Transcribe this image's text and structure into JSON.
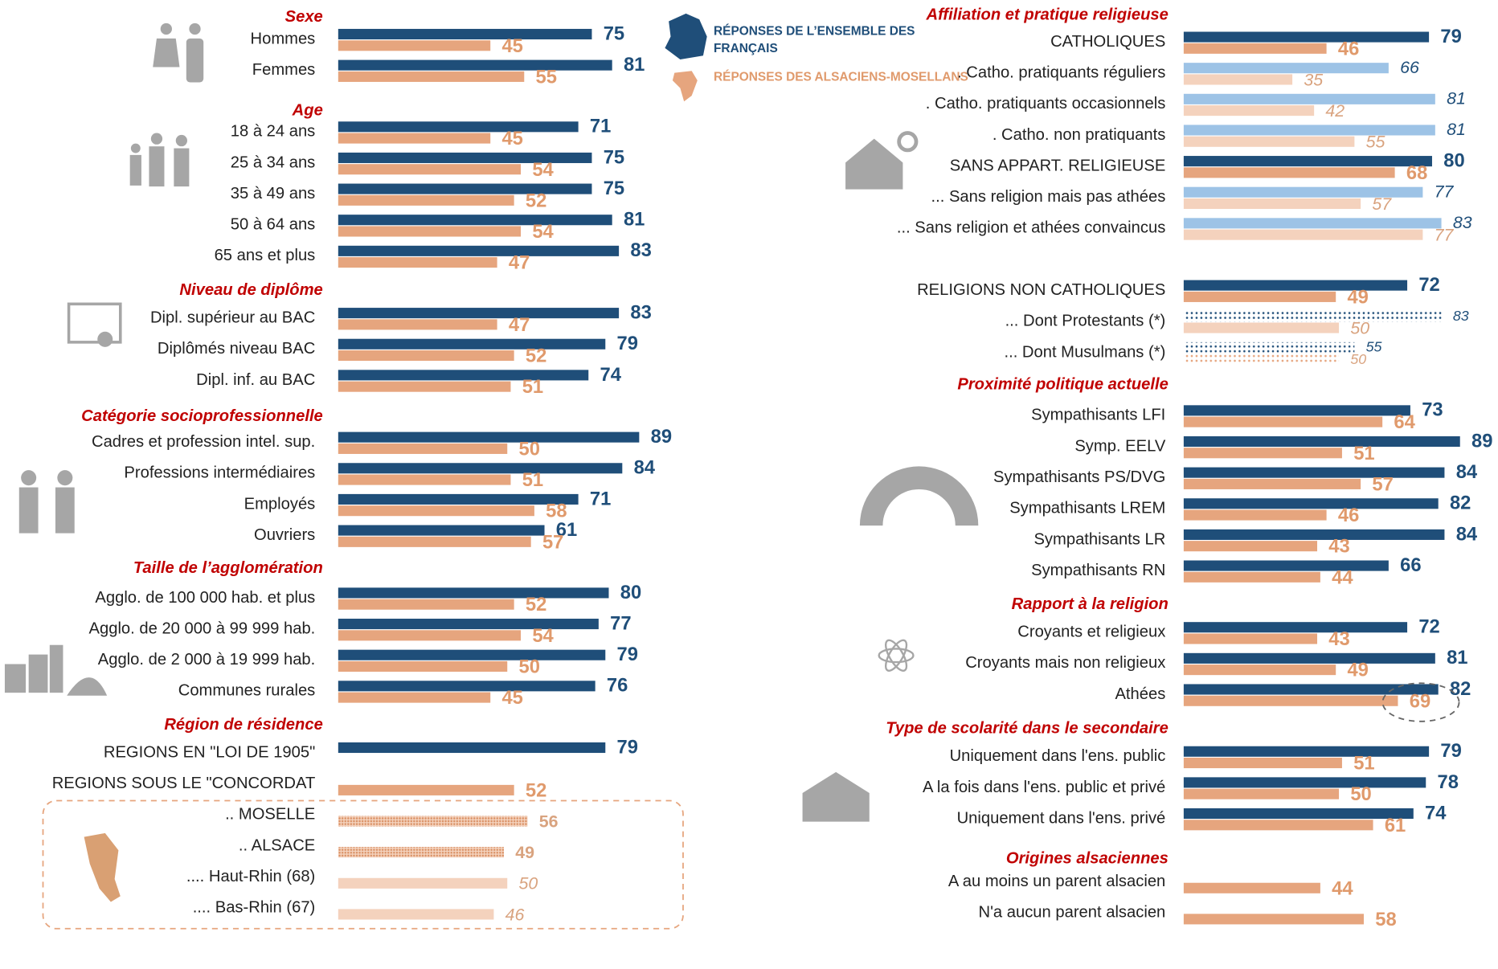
{
  "chart_data": {
    "type": "bar",
    "xlim": [
      0,
      100
    ],
    "series": [
      {
        "name": "RÉPONSES DE L’ENSEMBLE DES FRANÇAIS",
        "color": "#1f4e79",
        "light_color": "#9dc3e6"
      },
      {
        "name": "RÉPONSES DES ALSACIENS-MOSELLANS",
        "color": "#e6a57e",
        "light_color": "#f4d2bd"
      }
    ],
    "columns": [
      {
        "groups": [
          {
            "title": "Sexe",
            "rows": [
              {
                "label": "Hommes",
                "values": [
                  75,
                  45
                ],
                "styles": [
                  "solid",
                  "solid"
                ]
              },
              {
                "label": "Femmes",
                "values": [
                  81,
                  55
                ],
                "styles": [
                  "solid",
                  "solid"
                ]
              }
            ]
          },
          {
            "title": "Age",
            "rows": [
              {
                "label": "18 à 24 ans",
                "values": [
                  71,
                  45
                ],
                "styles": [
                  "solid",
                  "solid"
                ]
              },
              {
                "label": "25 à 34 ans",
                "values": [
                  75,
                  54
                ],
                "styles": [
                  "solid",
                  "solid"
                ]
              },
              {
                "label": "35 à 49 ans",
                "values": [
                  75,
                  52
                ],
                "styles": [
                  "solid",
                  "solid"
                ]
              },
              {
                "label": "50 à 64 ans",
                "values": [
                  81,
                  54
                ],
                "styles": [
                  "solid",
                  "solid"
                ]
              },
              {
                "label": "65 ans et plus",
                "values": [
                  83,
                  47
                ],
                "styles": [
                  "solid",
                  "solid"
                ]
              }
            ]
          },
          {
            "title": "Niveau de diplôme",
            "rows": [
              {
                "label": "Dipl. supérieur au BAC",
                "values": [
                  83,
                  47
                ],
                "styles": [
                  "solid",
                  "solid"
                ]
              },
              {
                "label": "Diplômés niveau BAC",
                "values": [
                  79,
                  52
                ],
                "styles": [
                  "solid",
                  "solid"
                ]
              },
              {
                "label": "Dipl. inf. au BAC",
                "values": [
                  74,
                  51
                ],
                "styles": [
                  "solid",
                  "solid"
                ]
              }
            ]
          },
          {
            "title": "Catégorie socioprofessionnelle",
            "rows": [
              {
                "label": "Cadres et profession intel. sup.",
                "values": [
                  89,
                  50
                ],
                "styles": [
                  "solid",
                  "solid"
                ]
              },
              {
                "label": "Professions intermédiaires",
                "values": [
                  84,
                  51
                ],
                "styles": [
                  "solid",
                  "solid"
                ]
              },
              {
                "label": "Employés",
                "values": [
                  71,
                  58
                ],
                "styles": [
                  "solid",
                  "solid"
                ]
              },
              {
                "label": "Ouvriers",
                "values": [
                  61,
                  57
                ],
                "styles": [
                  "solid",
                  "solid"
                ]
              }
            ]
          },
          {
            "title": "Taille de l’agglomération",
            "rows": [
              {
                "label": "Agglo. de 100 000  hab.  et plus",
                "values": [
                  80,
                  52
                ],
                "styles": [
                  "solid",
                  "solid"
                ]
              },
              {
                "label": "Agglo. de 20 000 à 99 999 hab.",
                "values": [
                  77,
                  54
                ],
                "styles": [
                  "solid",
                  "solid"
                ]
              },
              {
                "label": "Agglo. de 2 000 à 19 999 hab.",
                "values": [
                  79,
                  50
                ],
                "styles": [
                  "solid",
                  "solid"
                ]
              },
              {
                "label": "Communes rurales",
                "values": [
                  76,
                  45
                ],
                "styles": [
                  "solid",
                  "solid"
                ]
              }
            ]
          },
          {
            "title": "Région de résidence",
            "rows": [
              {
                "label": "REGIONS EN \"LOI DE 1905\"",
                "values": [
                  79,
                  null
                ],
                "styles": [
                  "solid",
                  "solid"
                ]
              },
              {
                "label": "REGIONS SOUS LE \"CONCORDAT",
                "values": [
                  null,
                  52
                ],
                "styles": [
                  "solid",
                  "solid"
                ]
              },
              {
                "label": ".. MOSELLE",
                "values": [
                  null,
                  56
                ],
                "styles": [
                  "solid",
                  "hatched"
                ]
              },
              {
                "label": ".. ALSACE",
                "values": [
                  null,
                  49
                ],
                "styles": [
                  "solid",
                  "hatched"
                ]
              },
              {
                "label": ".... Haut-Rhin (68)",
                "values": [
                  null,
                  50
                ],
                "styles": [
                  "solid",
                  "light"
                ]
              },
              {
                "label": ".... Bas-Rhin (67)",
                "values": [
                  null,
                  46
                ],
                "styles": [
                  "solid",
                  "light"
                ]
              }
            ]
          }
        ]
      },
      {
        "groups": [
          {
            "title": "Affiliation et pratique religieuse",
            "rows": [
              {
                "label": "CATHOLIQUES",
                "values": [
                  79,
                  46
                ],
                "styles": [
                  "solid",
                  "solid"
                ]
              },
              {
                "label": ". Catho. pratiquants réguliers",
                "values": [
                  66,
                  35
                ],
                "styles": [
                  "light",
                  "light"
                ]
              },
              {
                "label": ". Catho. pratiquants occasionnels",
                "values": [
                  81,
                  42
                ],
                "styles": [
                  "light",
                  "light"
                ]
              },
              {
                "label": ". Catho.  non pratiquants",
                "values": [
                  81,
                  55
                ],
                "styles": [
                  "light",
                  "light"
                ]
              },
              {
                "label": "SANS APPART. RELIGIEUSE",
                "values": [
                  80,
                  68
                ],
                "styles": [
                  "solid",
                  "solid"
                ]
              },
              {
                "label": "... Sans religion mais pas athées",
                "values": [
                  77,
                  57
                ],
                "styles": [
                  "light",
                  "light"
                ]
              },
              {
                "label": "... Sans religion et athées convaincus",
                "values": [
                  83,
                  77
                ],
                "styles": [
                  "light",
                  "light"
                ]
              }
            ]
          },
          {
            "rows": [
              {
                "label": "RELIGIONS NON CATHOLIQUES",
                "values": [
                  72,
                  49
                ],
                "styles": [
                  "solid",
                  "solid"
                ]
              },
              {
                "label": "... Dont Protestants (*)",
                "values": [
                  83,
                  50
                ],
                "styles": [
                  "dotted",
                  "light"
                ]
              },
              {
                "label": "... Dont Musulmans  (*)",
                "values": [
                  55,
                  50
                ],
                "styles": [
                  "dotted",
                  "dotted"
                ]
              }
            ]
          },
          {
            "title": "Proximité politique actuelle",
            "rows": [
              {
                "label": "Sympathisants LFI",
                "values": [
                  73,
                  64
                ],
                "styles": [
                  "solid",
                  "solid"
                ]
              },
              {
                "label": "Symp.  EELV",
                "values": [
                  89,
                  51
                ],
                "styles": [
                  "solid",
                  "solid"
                ]
              },
              {
                "label": "Sympathisants PS/DVG",
                "values": [
                  84,
                  57
                ],
                "styles": [
                  "solid",
                  "solid"
                ]
              },
              {
                "label": "Sympathisants LREM",
                "values": [
                  82,
                  46
                ],
                "styles": [
                  "solid",
                  "solid"
                ]
              },
              {
                "label": "Sympathisants LR",
                "values": [
                  84,
                  43
                ],
                "styles": [
                  "solid",
                  "solid"
                ]
              },
              {
                "label": "Sympathisants RN",
                "values": [
                  66,
                  44
                ],
                "styles": [
                  "solid",
                  "solid"
                ]
              }
            ]
          },
          {
            "title": "Rapport à la religion",
            "rows": [
              {
                "label": "Croyants et religieux",
                "values": [
                  72,
                  43
                ],
                "styles": [
                  "solid",
                  "solid"
                ]
              },
              {
                "label": "Croyants mais non religieux",
                "values": [
                  81,
                  49
                ],
                "styles": [
                  "solid",
                  "solid"
                ]
              },
              {
                "label": "Athées",
                "values": [
                  82,
                  69
                ],
                "styles": [
                  "solid",
                  "solid"
                ],
                "highlight": true
              }
            ]
          },
          {
            "title": "Type de scolarité dans le secondaire",
            "rows": [
              {
                "label": "Uniquement dans l'ens. public",
                "values": [
                  79,
                  51
                ],
                "styles": [
                  "solid",
                  "solid"
                ]
              },
              {
                "label": "A la fois dans l'ens. public et privé",
                "values": [
                  78,
                  50
                ],
                "styles": [
                  "solid",
                  "solid"
                ]
              },
              {
                "label": "Uniquement dans l'ens. privé",
                "values": [
                  74,
                  61
                ],
                "styles": [
                  "solid",
                  "solid"
                ]
              }
            ]
          },
          {
            "title": "Origines alsaciennes",
            "rows": [
              {
                "label": "A au moins un parent alsacien",
                "values": [
                  null,
                  44
                ],
                "styles": [
                  "solid",
                  "solid"
                ]
              },
              {
                "label": "N'a aucun parent alsacien",
                "values": [
                  null,
                  58
                ],
                "styles": [
                  "solid",
                  "solid"
                ]
              }
            ]
          }
        ]
      }
    ]
  }
}
